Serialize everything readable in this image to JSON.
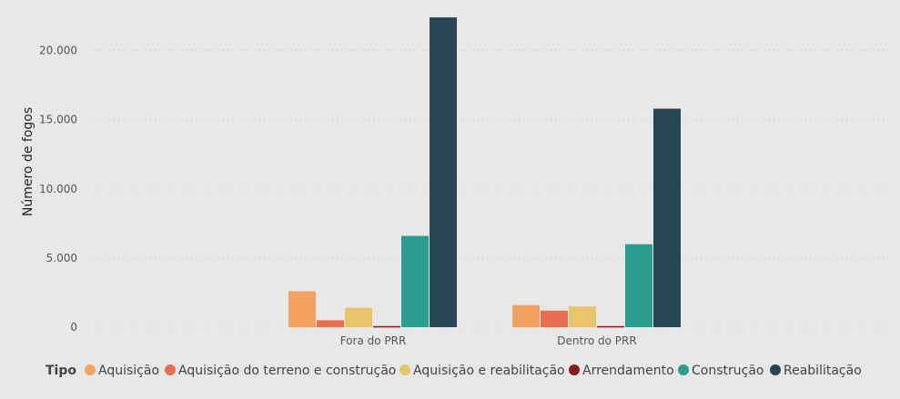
{
  "chart_data": {
    "type": "bar",
    "title": "",
    "xlabel": "",
    "ylabel": "Número de fogos",
    "ylim": [
      0,
      23000
    ],
    "yticks": [
      0,
      5000,
      10000,
      15000,
      20000
    ],
    "ytick_labels": [
      "0",
      "5.000",
      "10.000",
      "15.000",
      "20.000"
    ],
    "grid": true,
    "legend_position": "bottom-left",
    "legend_title": "Tipo",
    "categories": [
      "Fora do PRR",
      "Dentro do PRR"
    ],
    "series": [
      {
        "name": "Aquisição",
        "color": "#f4a261",
        "values": [
          2600,
          1600
        ]
      },
      {
        "name": "Aquisição do terreno e construção",
        "color": "#e76f51",
        "values": [
          500,
          1200
        ]
      },
      {
        "name": "Aquisição e reabilitação",
        "color": "#e9c46a",
        "values": [
          1400,
          1500
        ]
      },
      {
        "name": "Arrendamento",
        "color": "#8b1a1a",
        "values": [
          80,
          80
        ]
      },
      {
        "name": "Construção",
        "color": "#2a9d8f",
        "values": [
          6600,
          6000
        ]
      },
      {
        "name": "Reabilitação",
        "color": "#264653",
        "values": [
          22400,
          15800
        ]
      }
    ]
  }
}
